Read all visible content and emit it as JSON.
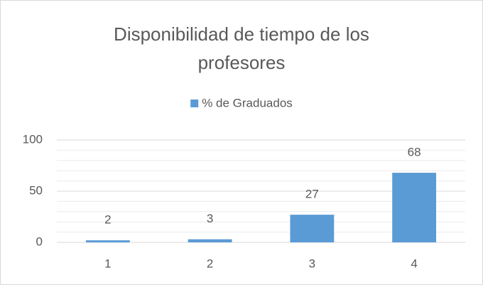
{
  "chart_data": {
    "type": "bar",
    "title": "Disponibilidad de tiempo de los profesores",
    "legend": "% de Graduados",
    "legend_position": "top",
    "categories": [
      "1",
      "2",
      "3",
      "4"
    ],
    "values": [
      2,
      3,
      27,
      68
    ],
    "color": "#5b9bd5",
    "ylim": [
      0,
      100
    ],
    "yticks": [
      0,
      50,
      100
    ],
    "minor_yticks": [
      10,
      20,
      30,
      40,
      60,
      70,
      80,
      90
    ],
    "grid": true
  }
}
